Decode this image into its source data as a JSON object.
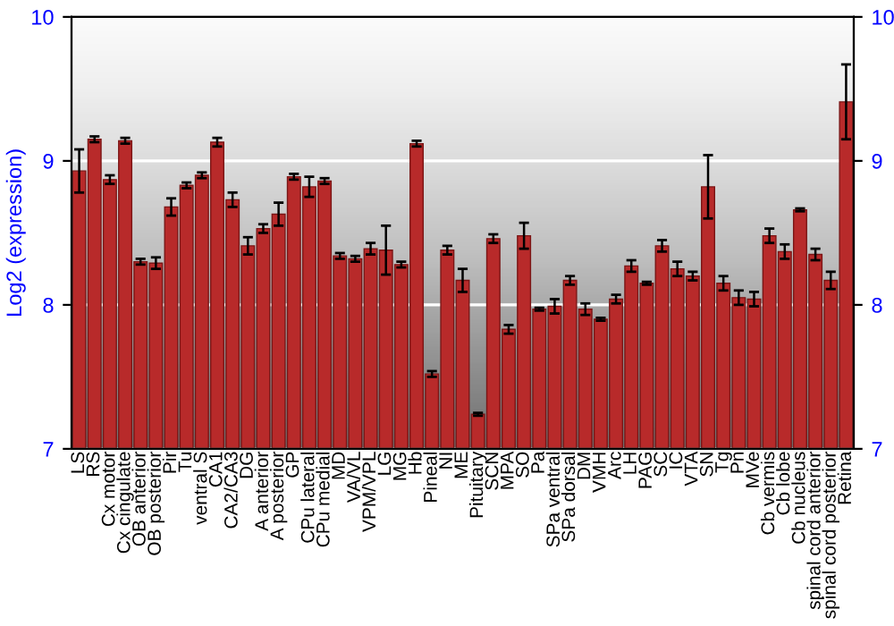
{
  "chart_data": {
    "type": "bar",
    "ylabel": "Log2 (expression)",
    "categories": [
      "LS",
      "RS",
      "Cx motor",
      "Cx cingulate",
      "OB anterior",
      "OB posterior",
      "Pir",
      "Tu",
      "ventral S",
      "CA1",
      "CA2/CA3",
      "DG",
      "A anterior",
      "A posterior",
      "GP",
      "CPu lateral",
      "CPu medial",
      "MD",
      "VA/VL",
      "VPM/VPL",
      "LG",
      "MG",
      "Hb",
      "Pineal",
      "NI",
      "ME",
      "Pituitary",
      "SCN",
      "MPA",
      "SO",
      "Pa",
      "SPa ventral",
      "SPa dorsal",
      "DM",
      "VMH",
      "Arc",
      "LH",
      "PAG",
      "SC",
      "IC",
      "VTA",
      "SN",
      "Tg",
      "Pn",
      "MVe",
      "Cb vermis",
      "Cb lobe",
      "Cb nucleus",
      "spinal cord anterior",
      "spinal cord posterior",
      "Retina"
    ],
    "values": [
      8.93,
      9.15,
      8.87,
      9.14,
      8.3,
      8.29,
      8.68,
      8.83,
      8.9,
      9.13,
      8.73,
      8.41,
      8.53,
      8.63,
      8.89,
      8.82,
      8.86,
      8.34,
      8.32,
      8.39,
      8.38,
      8.28,
      9.12,
      7.52,
      8.38,
      8.17,
      7.24,
      8.46,
      7.83,
      8.48,
      7.97,
      7.99,
      8.17,
      7.97,
      7.9,
      8.04,
      8.27,
      8.15,
      8.41,
      8.25,
      8.2,
      8.82,
      8.15,
      8.05,
      8.04,
      8.48,
      8.37,
      8.66,
      8.35,
      8.17,
      9.41
    ],
    "errors": [
      0.15,
      0.02,
      0.03,
      0.02,
      0.02,
      0.04,
      0.06,
      0.02,
      0.02,
      0.03,
      0.05,
      0.06,
      0.03,
      0.08,
      0.02,
      0.07,
      0.02,
      0.02,
      0.02,
      0.04,
      0.17,
      0.02,
      0.02,
      0.02,
      0.03,
      0.08,
      0.01,
      0.03,
      0.03,
      0.09,
      0.01,
      0.05,
      0.03,
      0.04,
      0.01,
      0.03,
      0.04,
      0.01,
      0.04,
      0.05,
      0.03,
      0.22,
      0.05,
      0.05,
      0.05,
      0.05,
      0.05,
      0.01,
      0.04,
      0.06,
      0.26
    ],
    "color": "#b82a2a",
    "ylim": [
      7,
      10
    ],
    "yticks": [
      7,
      8,
      9,
      10
    ],
    "y2lim": [
      7,
      10
    ],
    "y2ticks": [
      7,
      8,
      9,
      10
    ],
    "grid": "y"
  }
}
